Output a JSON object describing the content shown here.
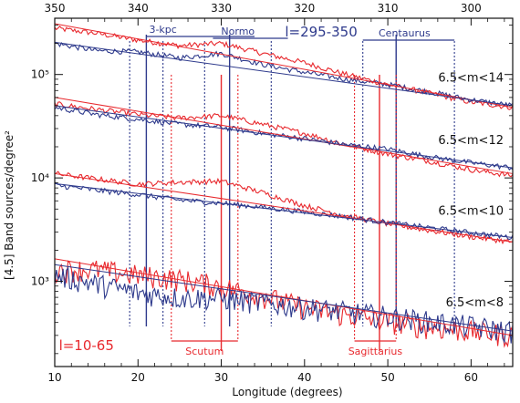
{
  "chart_data": {
    "type": "line",
    "title": "",
    "xlabel": "Longitude (degrees)",
    "ylabel": "[4.5] Band sources/degree²",
    "x_bottom": {
      "range": [
        10,
        65
      ],
      "ticks": [
        10,
        20,
        30,
        40,
        50,
        60
      ],
      "tick_labels": [
        "10",
        "20",
        "30",
        "40",
        "50",
        "60"
      ]
    },
    "x_top": {
      "range": [
        350,
        295
      ],
      "ticks": [
        350,
        340,
        330,
        320,
        310,
        300
      ],
      "tick_labels": [
        "350",
        "340",
        "330",
        "320",
        "310",
        "300"
      ]
    },
    "y_axis": {
      "scale": "log",
      "range": [
        150,
        350000
      ],
      "ticks": [
        1000,
        10000,
        100000
      ],
      "tick_labels": [
        "10³",
        "10⁴",
        "10⁵"
      ],
      "colors": {
        "blue": "#2e3a8c",
        "red": "#e8292e"
      }
    },
    "series": [
      {
        "name": "6.5<m<14",
        "blue_x": [
          10,
          15,
          20,
          25,
          30,
          35,
          40,
          45,
          50,
          55,
          60,
          65
        ],
        "blue_y": [
          200000,
          170000,
          165000,
          145000,
          160000,
          125000,
          105000,
          90000,
          80000,
          68000,
          57000,
          50000
        ],
        "red_x": [
          10,
          15,
          20,
          25,
          30,
          35,
          40,
          45,
          50,
          55,
          60,
          65
        ],
        "red_y": [
          280000,
          250000,
          215000,
          190000,
          200000,
          160000,
          130000,
          100000,
          80000,
          66000,
          54000,
          48000
        ],
        "blue_fit": [
          205000,
          50000
        ],
        "red_fit": [
          310000,
          48000
        ],
        "label": "6.5<m<14"
      },
      {
        "name": "6.5<m<12",
        "blue_x": [
          10,
          15,
          20,
          25,
          30,
          35,
          40,
          45,
          50,
          55,
          60,
          65
        ],
        "blue_y": [
          48000,
          41000,
          37000,
          33000,
          31000,
          27000,
          24000,
          21000,
          19000,
          16000,
          14000,
          12500
        ],
        "red_x": [
          10,
          15,
          20,
          25,
          30,
          35,
          40,
          45,
          50,
          55,
          60,
          65
        ],
        "red_y": [
          52000,
          46000,
          41000,
          38000,
          40000,
          33000,
          27000,
          21000,
          17000,
          14500,
          12000,
          10500
        ],
        "blue_fit": [
          50000,
          12500
        ],
        "red_fit": [
          60000,
          11000
        ],
        "label": "6.5<m<12"
      },
      {
        "name": "6.5<m<10",
        "blue_x": [
          10,
          15,
          20,
          25,
          30,
          35,
          40,
          45,
          50,
          55,
          60,
          65
        ],
        "blue_y": [
          8500,
          7600,
          6900,
          6100,
          5700,
          5200,
          4700,
          4200,
          3700,
          3300,
          2950,
          2650
        ],
        "red_x": [
          10,
          15,
          20,
          25,
          30,
          35,
          40,
          45,
          50,
          55,
          60,
          65
        ],
        "red_y": [
          11000,
          9800,
          8700,
          9100,
          9300,
          7200,
          5400,
          4300,
          3600,
          3100,
          2700,
          2400
        ],
        "blue_fit": [
          8800,
          2650
        ],
        "red_fit": [
          11000,
          2400
        ],
        "label": "6.5<m<10"
      },
      {
        "name": "6.5<m<8",
        "blue_x": [
          10,
          15,
          20,
          25,
          30,
          35,
          40,
          45,
          50,
          55,
          60,
          65
        ],
        "blue_y": [
          1150,
          950,
          780,
          700,
          690,
          620,
          560,
          510,
          460,
          410,
          370,
          330
        ],
        "red_x": [
          10,
          15,
          20,
          25,
          30,
          35,
          40,
          45,
          50,
          55,
          60,
          65
        ],
        "red_y": [
          1300,
          1300,
          1150,
          1050,
          900,
          720,
          560,
          470,
          410,
          360,
          330,
          300
        ],
        "blue_fit": [
          1450,
          330
        ],
        "red_fit": [
          1650,
          300
        ],
        "label": "6.5<m<8"
      }
    ],
    "annotations": [
      {
        "text": "3-kpc",
        "color": "blue",
        "bracket_top": [
          339,
          326
        ]
      },
      {
        "text": "Normo",
        "color": "blue",
        "bracket_top": [
          331,
          322
        ]
      },
      {
        "text": "l=295-350",
        "color": "blue"
      },
      {
        "text": "Centaurus",
        "color": "blue",
        "bracket_top": [
          313,
          302
        ]
      },
      {
        "text": "l=10-65",
        "color": "red"
      },
      {
        "text": "Scutum",
        "color": "red",
        "bracket_bottom": [
          24,
          32
        ]
      },
      {
        "text": "Sagittarius",
        "color": "red",
        "bracket_bottom": [
          46,
          51
        ]
      }
    ],
    "vertical_lines": {
      "blue_solid_top": [
        339,
        329,
        309
      ],
      "blue_dotted_top": [
        341,
        337,
        332,
        324,
        313,
        302
      ],
      "red_solid_bottom": [
        30,
        49
      ],
      "red_dotted_bottom": [
        24,
        32,
        46,
        51
      ]
    }
  }
}
